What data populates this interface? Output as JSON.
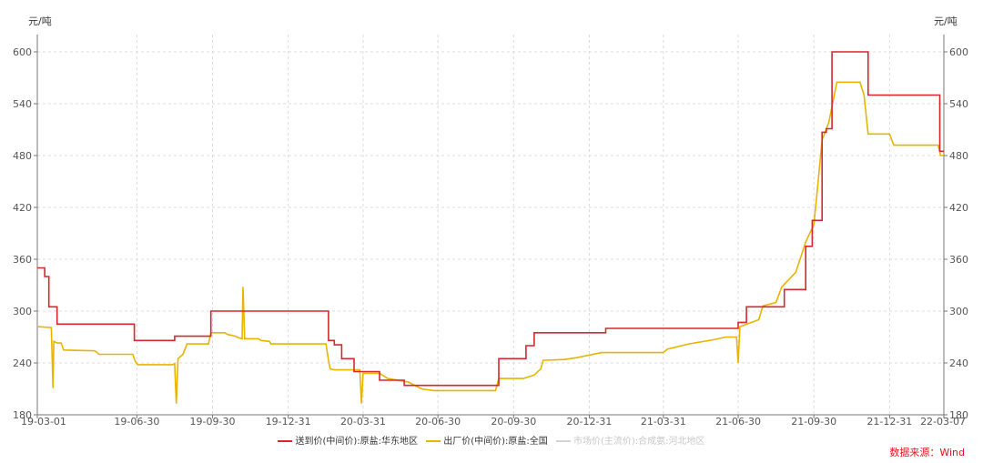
{
  "chart_data": {
    "type": "line",
    "y_unit_left": "元/吨",
    "y_unit_right": "元/吨",
    "ylim": [
      180,
      620
    ],
    "yticks": [
      180,
      240,
      300,
      360,
      420,
      480,
      540,
      600
    ],
    "xlim": [
      "2019-03-01",
      "2022-03-07"
    ],
    "xticks": [
      {
        "date": "2019-03-01",
        "label": "19-03-01"
      },
      {
        "date": "2019-06-30",
        "label": "19-06-30"
      },
      {
        "date": "2019-09-30",
        "label": "19-09-30"
      },
      {
        "date": "2019-12-31",
        "label": "19-12-31"
      },
      {
        "date": "2020-03-31",
        "label": "20-03-31"
      },
      {
        "date": "2020-06-30",
        "label": "20-06-30"
      },
      {
        "date": "2020-09-30",
        "label": "20-09-30"
      },
      {
        "date": "2020-12-31",
        "label": "20-12-31"
      },
      {
        "date": "2021-03-31",
        "label": "21-03-31"
      },
      {
        "date": "2021-06-30",
        "label": "21-06-30"
      },
      {
        "date": "2021-09-30",
        "label": "21-09-30"
      },
      {
        "date": "2021-12-31",
        "label": "21-12-31"
      },
      {
        "date": "2022-03-07",
        "label": "22-03-07"
      }
    ],
    "grid": true,
    "legend_position": "bottom",
    "series": [
      {
        "name": "送到价(中间价):原盐:华东地区",
        "color": "#d7262e",
        "step": true,
        "points": [
          [
            "2019-03-01",
            350
          ],
          [
            "2019-03-10",
            340
          ],
          [
            "2019-03-15",
            305
          ],
          [
            "2019-03-25",
            285
          ],
          [
            "2019-06-27",
            266
          ],
          [
            "2019-08-15",
            271
          ],
          [
            "2019-09-28",
            300
          ],
          [
            "2020-02-18",
            266
          ],
          [
            "2020-02-25",
            261
          ],
          [
            "2020-03-05",
            245
          ],
          [
            "2020-03-20",
            230
          ],
          [
            "2020-04-20",
            220
          ],
          [
            "2020-05-20",
            214
          ],
          [
            "2020-09-12",
            245
          ],
          [
            "2020-10-15",
            260
          ],
          [
            "2020-10-25",
            275
          ],
          [
            "2021-01-20",
            280
          ],
          [
            "2021-06-30",
            287
          ],
          [
            "2021-07-10",
            305
          ],
          [
            "2021-08-25",
            325
          ],
          [
            "2021-09-20",
            375
          ],
          [
            "2021-09-28",
            405
          ],
          [
            "2021-10-10",
            507
          ],
          [
            "2021-10-15",
            511
          ],
          [
            "2021-10-22",
            600
          ],
          [
            "2021-12-05",
            550
          ],
          [
            "2022-03-02",
            485
          ],
          [
            "2022-03-07",
            485
          ]
        ]
      },
      {
        "name": "出厂价(中间价):原盐:全国",
        "color": "#e8b400",
        "step": false,
        "points": [
          [
            "2019-03-01",
            282
          ],
          [
            "2019-03-18",
            281
          ],
          [
            "2019-03-20",
            211
          ],
          [
            "2019-03-21",
            265
          ],
          [
            "2019-03-25",
            263
          ],
          [
            "2019-03-30",
            263
          ],
          [
            "2019-04-02",
            255
          ],
          [
            "2019-05-10",
            254
          ],
          [
            "2019-05-15",
            250
          ],
          [
            "2019-06-25",
            250
          ],
          [
            "2019-06-28",
            242
          ],
          [
            "2019-07-01",
            238
          ],
          [
            "2019-08-12",
            238
          ],
          [
            "2019-08-15",
            239
          ],
          [
            "2019-08-17",
            193
          ],
          [
            "2019-08-19",
            245
          ],
          [
            "2019-08-25",
            250
          ],
          [
            "2019-08-30",
            262
          ],
          [
            "2019-09-25",
            262
          ],
          [
            "2019-09-28",
            275
          ],
          [
            "2019-10-15",
            275
          ],
          [
            "2019-10-18",
            273
          ],
          [
            "2019-10-28",
            271
          ],
          [
            "2019-11-01",
            269
          ],
          [
            "2019-11-05",
            268
          ],
          [
            "2019-11-06",
            328
          ],
          [
            "2019-11-08",
            268
          ],
          [
            "2019-11-25",
            268
          ],
          [
            "2019-11-28",
            266
          ],
          [
            "2019-12-08",
            265
          ],
          [
            "2019-12-10",
            262
          ],
          [
            "2020-02-15",
            262
          ],
          [
            "2020-02-18",
            243
          ],
          [
            "2020-02-20",
            233
          ],
          [
            "2020-02-25",
            232
          ],
          [
            "2020-03-27",
            232
          ],
          [
            "2020-03-29",
            193
          ],
          [
            "2020-03-31",
            228
          ],
          [
            "2020-04-20",
            228
          ],
          [
            "2020-04-30",
            222
          ],
          [
            "2020-05-25",
            218
          ],
          [
            "2020-06-10",
            210
          ],
          [
            "2020-06-25",
            208
          ],
          [
            "2020-09-08",
            208
          ],
          [
            "2020-09-12",
            222
          ],
          [
            "2020-10-12",
            222
          ],
          [
            "2020-10-25",
            226
          ],
          [
            "2020-11-02",
            233
          ],
          [
            "2020-11-05",
            243
          ],
          [
            "2020-12-01",
            244
          ],
          [
            "2020-12-15",
            246
          ],
          [
            "2021-01-15",
            252
          ],
          [
            "2021-03-31",
            252
          ],
          [
            "2021-04-05",
            256
          ],
          [
            "2021-05-01",
            262
          ],
          [
            "2021-06-01",
            267
          ],
          [
            "2021-06-15",
            270
          ],
          [
            "2021-06-28",
            270
          ],
          [
            "2021-06-30",
            240
          ],
          [
            "2021-07-02",
            282
          ],
          [
            "2021-07-25",
            290
          ],
          [
            "2021-07-30",
            306
          ],
          [
            "2021-08-15",
            310
          ],
          [
            "2021-08-22",
            328
          ],
          [
            "2021-09-08",
            345
          ],
          [
            "2021-09-20",
            380
          ],
          [
            "2021-09-30",
            400
          ],
          [
            "2021-10-05",
            448
          ],
          [
            "2021-10-10",
            498
          ],
          [
            "2021-10-18",
            518
          ],
          [
            "2021-10-28",
            565
          ],
          [
            "2021-11-25",
            565
          ],
          [
            "2021-11-30",
            550
          ],
          [
            "2021-12-05",
            505
          ],
          [
            "2021-12-31",
            505
          ],
          [
            "2022-01-05",
            492
          ],
          [
            "2022-02-28",
            492
          ],
          [
            "2022-03-03",
            480
          ],
          [
            "2022-03-07",
            480
          ]
        ]
      },
      {
        "name": "市场价(主流价):合成氨:河北地区",
        "color": "#d4d4d4",
        "points": []
      }
    ]
  },
  "source_text": "数据来源：Wind"
}
